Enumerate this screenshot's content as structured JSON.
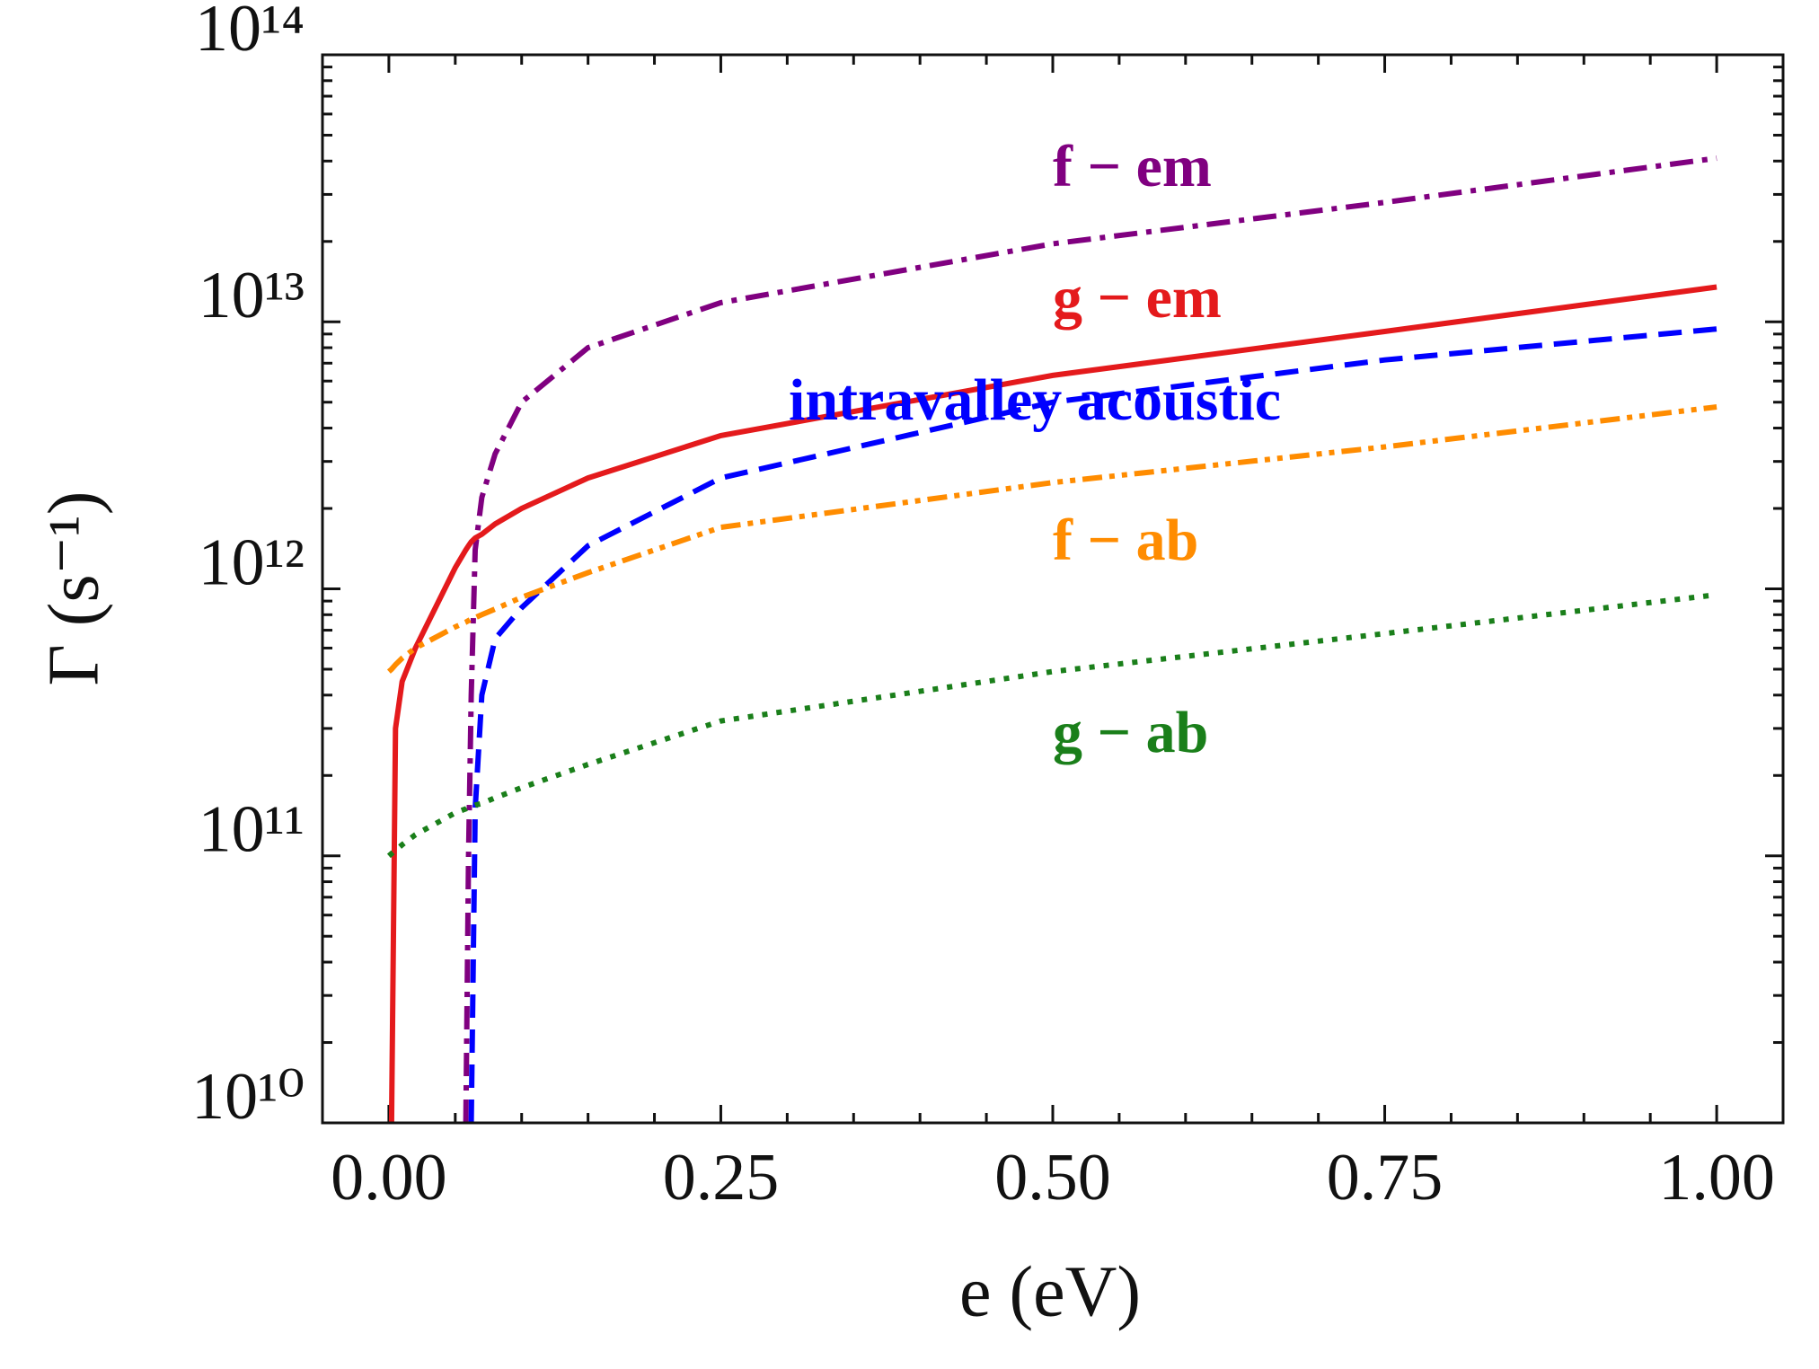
{
  "chart_data": {
    "type": "line",
    "xlabel": "e (eV)",
    "ylabel": "Γ (s⁻¹)",
    "yscale": "log",
    "xlim": [
      -0.05,
      1.05
    ],
    "ylim": [
      10000000000.0,
      100000000000000.0
    ],
    "xticks": [
      {
        "value": 0,
        "label": "0.00"
      },
      {
        "value": 0.25,
        "label": "0.25"
      },
      {
        "value": 0.5,
        "label": "0.50"
      },
      {
        "value": 0.75,
        "label": "0.75"
      },
      {
        "value": 1,
        "label": "1.00"
      }
    ],
    "yticks": [
      {
        "value": 10000000000.0,
        "label": "10¹⁰"
      },
      {
        "value": 100000000000.0,
        "label": "10¹¹"
      },
      {
        "value": 1000000000000.0,
        "label": "10¹²"
      },
      {
        "value": 10000000000000.0,
        "label": "10¹³"
      },
      {
        "value": 100000000000000.0,
        "label": "10¹⁴"
      }
    ],
    "xminorticks": [
      -0.05,
      0.05,
      0.1,
      0.15,
      0.2,
      0.3,
      0.35,
      0.4,
      0.45,
      0.55,
      0.6,
      0.65,
      0.7,
      0.8,
      0.85,
      0.9,
      0.95,
      1.05
    ],
    "yminorticks": [
      20000000000.0,
      30000000000.0,
      40000000000.0,
      50000000000.0,
      60000000000.0,
      70000000000.0,
      80000000000.0,
      90000000000.0,
      200000000000.0,
      300000000000.0,
      400000000000.0,
      500000000000.0,
      600000000000.0,
      700000000000.0,
      800000000000.0,
      900000000000.0,
      2000000000000.0,
      3000000000000.0,
      4000000000000.0,
      5000000000000.0,
      6000000000000.0,
      7000000000000.0,
      8000000000000.0,
      9000000000000.0,
      20000000000000.0,
      30000000000000.0,
      40000000000000.0,
      50000000000000.0,
      60000000000000.0,
      70000000000000.0,
      80000000000000.0,
      90000000000000.0
    ],
    "x": [
      0,
      0.002,
      0.005,
      0.01,
      0.02,
      0.05,
      0.058,
      0.06,
      0.062,
      0.065,
      0.07,
      0.08,
      0.1,
      0.15,
      0.25,
      0.5,
      0.75,
      1.0
    ],
    "series": [
      {
        "name": "f − em",
        "color": "#800080",
        "linestyle": "dashdot",
        "values": [
          null,
          null,
          null,
          null,
          null,
          null,
          10000000000.0,
          100000000000.0,
          400000000000.0,
          1400000000000.0,
          2200000000000.0,
          3200000000000.0,
          5000000000000.0,
          8000000000000.0,
          11800000000000.0,
          19600000000000.0,
          28000000000000.0,
          41000000000000.0
        ]
      },
      {
        "name": "g − em",
        "color": "#e41a1c",
        "linestyle": "solid",
        "values": [
          null,
          10000000000.0,
          300000000000.0,
          450000000000.0,
          600000000000.0,
          1200000000000.0,
          1400000000000.0,
          1450000000000.0,
          1500000000000.0,
          1550000000000.0,
          1600000000000.0,
          1750000000000.0,
          2000000000000.0,
          2600000000000.0,
          3750000000000.0,
          6300000000000.0,
          9200000000000.0,
          13500000000000.0
        ]
      },
      {
        "name": "intravalley acoustic",
        "color": "#0000ff",
        "linestyle": "dashed",
        "values": [
          null,
          null,
          null,
          null,
          null,
          null,
          null,
          null,
          10000000000.0,
          150000000000.0,
          400000000000.0,
          650000000000.0,
          850000000000.0,
          1450000000000.0,
          2600000000000.0,
          5000000000000.0,
          7200000000000.0,
          9400000000000.0
        ]
      },
      {
        "name": "f − ab",
        "color": "#ff8c00",
        "linestyle": "dashdotdot",
        "values": [
          490000000000.0,
          500000000000.0,
          520000000000.0,
          550000000000.0,
          600000000000.0,
          720000000000.0,
          750000000000.0,
          760000000000.0,
          770000000000.0,
          780000000000.0,
          800000000000.0,
          840000000000.0,
          930000000000.0,
          1150000000000.0,
          1700000000000.0,
          2500000000000.0,
          3400000000000.0,
          4800000000000.0
        ]
      },
      {
        "name": "g − ab",
        "color": "#1a7f1a",
        "linestyle": "dotted",
        "values": [
          100000000000.0,
          102000000000.0,
          105000000000.0,
          110000000000.0,
          120000000000.0,
          145000000000.0,
          150000000000.0,
          152000000000.0,
          153000000000.0,
          155000000000.0,
          157000000000.0,
          165000000000.0,
          180000000000.0,
          220000000000.0,
          320000000000.0,
          490000000000.0,
          680000000000.0,
          950000000000.0
        ]
      }
    ]
  }
}
